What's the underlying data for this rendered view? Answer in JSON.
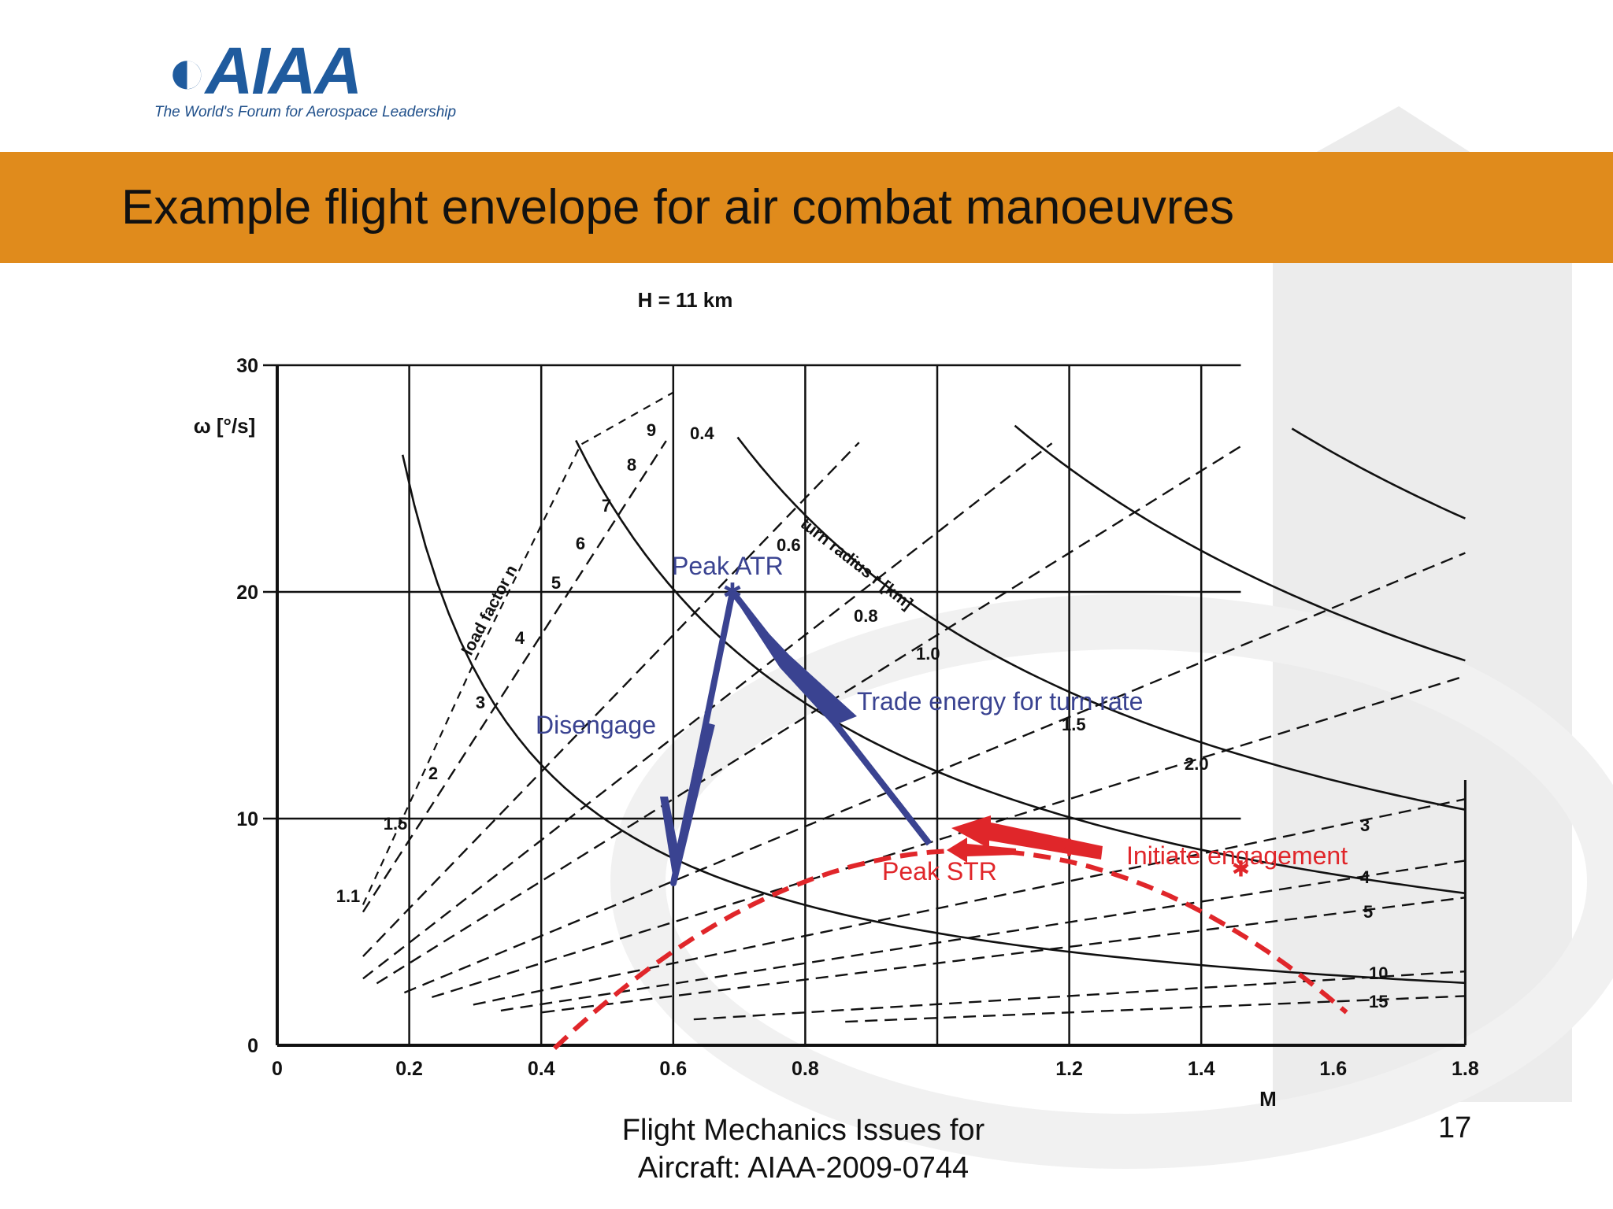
{
  "logo": {
    "name": "AIAA",
    "tagline": "The World's Forum for Aerospace Leadership"
  },
  "slide": {
    "title": "Example flight envelope for air combat manoeuvres",
    "footer_line1": "Flight Mechanics Issues for",
    "footer_line2": "Aircraft: AIAA-2009-0744",
    "page_number": "17"
  },
  "colors": {
    "title_bar": "#e08b1c",
    "logo_blue": "#1f5b9e",
    "annot_blue": "#3a4391",
    "annot_red": "#e0262a"
  },
  "figure": {
    "header": "H = 11 km",
    "ylabel": "ω [°/s]",
    "xlabel": "M",
    "x_ticks": [
      "0",
      "0.2",
      "0.4",
      "0.6",
      "0.8",
      "1.2",
      "1.4",
      "1.6",
      "1.8"
    ],
    "y_ticks": [
      "0",
      "10",
      "20",
      "30"
    ],
    "load_factor_title": "load factor n",
    "load_factor_labels": [
      "1.1",
      "1.5",
      "2",
      "3",
      "4",
      "5",
      "6",
      "7",
      "8",
      "9"
    ],
    "turn_radius_title": "turn radius r [km]",
    "turn_radius_labels": [
      "0.4",
      "0.6",
      "0.8",
      "1.0",
      "1.5",
      "2.0",
      "3",
      "4",
      "5",
      "10",
      "15"
    ],
    "annotations": {
      "peak_atr": "Peak ATR",
      "peak_str": "Peak STR",
      "trade": "Trade energy for turn rate",
      "disengage": "Disengage",
      "initiate": "Initiate engagement"
    }
  }
}
